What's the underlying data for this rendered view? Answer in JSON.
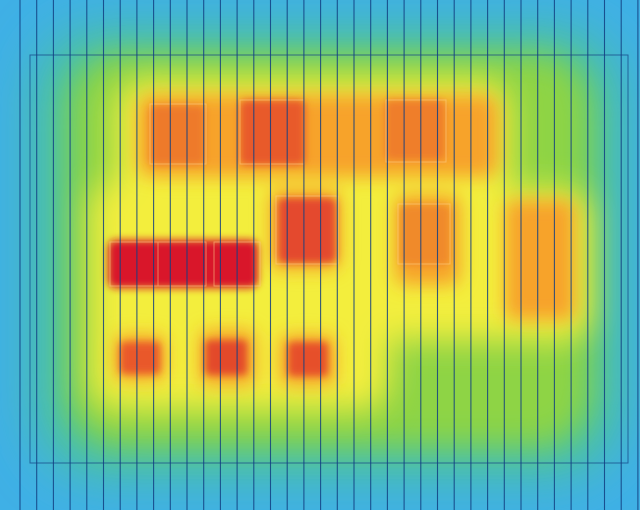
{
  "heatmap": {
    "palette": {
      "cold": "#3fb0e6",
      "cool": "#4fc889",
      "mild": "#8ed444",
      "warm": "#f3ee3c",
      "hot": "#f7a32a",
      "hotter": "#ec5a2b",
      "hottest": "#d9132a",
      "grid_line": "#123f82",
      "cell_outline": "#ffd28a"
    },
    "colorbar": false,
    "legend": false
  }
}
